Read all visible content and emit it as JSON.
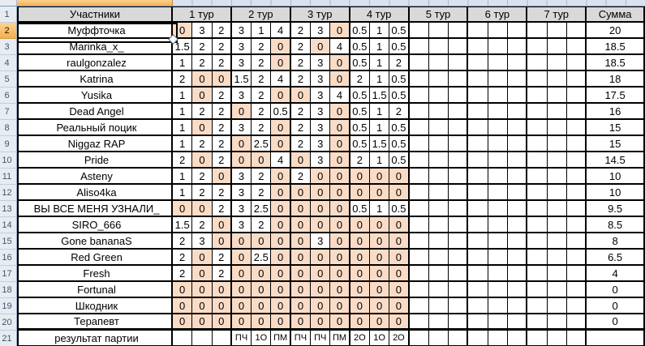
{
  "sheet": {
    "columns": {
      "header_row_number": "1",
      "participants_header": "Участники",
      "round_headers": [
        "1 тур",
        "2 тур",
        "3 тур",
        "4 тур",
        "5 тур",
        "6 тур",
        "7 тур"
      ],
      "sum_header": "Сумма"
    },
    "participants": [
      {
        "row": "2",
        "name": "Муффточка",
        "selected": true,
        "scores": [
          "0",
          "3",
          "2",
          "3",
          "1",
          "4",
          "2",
          "3",
          "0",
          "0.5",
          "1",
          "0.5",
          "",
          "",
          "",
          "",
          "",
          "",
          "",
          "",
          ""
        ],
        "sum": "20"
      },
      {
        "row": "3",
        "name": "Marinka_x_",
        "selected": false,
        "scores": [
          "1.5",
          "2",
          "2",
          "3",
          "2",
          "0",
          "2",
          "0",
          "4",
          "0.5",
          "1",
          "0.5",
          "",
          "",
          "",
          "",
          "",
          "",
          "",
          "",
          ""
        ],
        "sum": "18.5"
      },
      {
        "row": "4",
        "name": "raulgonzalez",
        "selected": false,
        "scores": [
          "1",
          "2",
          "2",
          "3",
          "2",
          "0",
          "2",
          "3",
          "0",
          "0.5",
          "1",
          "2",
          "",
          "",
          "",
          "",
          "",
          "",
          "",
          "",
          ""
        ],
        "sum": "18.5"
      },
      {
        "row": "5",
        "name": "Katrina",
        "selected": false,
        "scores": [
          "2",
          "0",
          "0",
          "1.5",
          "2",
          "4",
          "2",
          "3",
          "0",
          "2",
          "1",
          "0.5",
          "",
          "",
          "",
          "",
          "",
          "",
          "",
          "",
          ""
        ],
        "sum": "18"
      },
      {
        "row": "6",
        "name": "Yusika",
        "selected": false,
        "scores": [
          "1",
          "0",
          "2",
          "3",
          "2",
          "0",
          "0",
          "3",
          "4",
          "0.5",
          "1.5",
          "0.5",
          "",
          "",
          "",
          "",
          "",
          "",
          "",
          "",
          ""
        ],
        "sum": "17.5"
      },
      {
        "row": "7",
        "name": "Dead Angel",
        "selected": false,
        "scores": [
          "1",
          "2",
          "2",
          "0",
          "2",
          "0.5",
          "2",
          "3",
          "0",
          "0.5",
          "1",
          "2",
          "",
          "",
          "",
          "",
          "",
          "",
          "",
          "",
          ""
        ],
        "sum": "16"
      },
      {
        "row": "8",
        "name": "Реальный поцик",
        "selected": false,
        "scores": [
          "1",
          "0",
          "2",
          "3",
          "2",
          "0",
          "2",
          "3",
          "0",
          "0.5",
          "1",
          "0.5",
          "",
          "",
          "",
          "",
          "",
          "",
          "",
          "",
          ""
        ],
        "sum": "15"
      },
      {
        "row": "9",
        "name": "Niggaz RAP",
        "selected": false,
        "scores": [
          "1",
          "2",
          "2",
          "0",
          "2.5",
          "0",
          "2",
          "3",
          "0",
          "0.5",
          "1.5",
          "0.5",
          "",
          "",
          "",
          "",
          "",
          "",
          "",
          "",
          ""
        ],
        "sum": "15"
      },
      {
        "row": "10",
        "name": "Pride",
        "selected": false,
        "scores": [
          "2",
          "0",
          "2",
          "0",
          "0",
          "4",
          "0",
          "3",
          "0",
          "2",
          "1",
          "0.5",
          "",
          "",
          "",
          "",
          "",
          "",
          "",
          "",
          ""
        ],
        "sum": "14.5"
      },
      {
        "row": "11",
        "name": "Asteny",
        "selected": false,
        "scores": [
          "1",
          "2",
          "0",
          "3",
          "2",
          "0",
          "2",
          "0",
          "0",
          "0",
          "0",
          "0",
          "",
          "",
          "",
          "",
          "",
          "",
          "",
          "",
          ""
        ],
        "sum": "10"
      },
      {
        "row": "12",
        "name": "Aliso4ka",
        "selected": false,
        "scores": [
          "1",
          "2",
          "2",
          "3",
          "2",
          "0",
          "0",
          "0",
          "0",
          "0",
          "0",
          "0",
          "",
          "",
          "",
          "",
          "",
          "",
          "",
          "",
          ""
        ],
        "sum": "10"
      },
      {
        "row": "13",
        "name": "ВЫ ВСЕ МЕНЯ УЗНАЛИ_",
        "selected": false,
        "scores": [
          "0",
          "0",
          "2",
          "3",
          "2.5",
          "0",
          "0",
          "0",
          "0",
          "0.5",
          "1",
          "0.5",
          "",
          "",
          "",
          "",
          "",
          "",
          "",
          "",
          ""
        ],
        "sum": "9.5"
      },
      {
        "row": "14",
        "name": "SIRO_666",
        "selected": false,
        "scores": [
          "1.5",
          "2",
          "0",
          "3",
          "2",
          "0",
          "0",
          "0",
          "0",
          "0",
          "0",
          "0",
          "",
          "",
          "",
          "",
          "",
          "",
          "",
          "",
          ""
        ],
        "sum": "8.5"
      },
      {
        "row": "15",
        "name": "Gone bananaS",
        "selected": false,
        "scores": [
          "2",
          "3",
          "0",
          "0",
          "0",
          "0",
          "0",
          "3",
          "0",
          "0",
          "0",
          "0",
          "",
          "",
          "",
          "",
          "",
          "",
          "",
          "",
          ""
        ],
        "sum": "8"
      },
      {
        "row": "16",
        "name": "Red Green",
        "selected": false,
        "scores": [
          "2",
          "0",
          "2",
          "0",
          "2.5",
          "0",
          "0",
          "0",
          "0",
          "0",
          "0",
          "0",
          "",
          "",
          "",
          "",
          "",
          "",
          "",
          "",
          ""
        ],
        "sum": "6.5"
      },
      {
        "row": "17",
        "name": "Fresh",
        "selected": false,
        "scores": [
          "2",
          "0",
          "2",
          "0",
          "0",
          "0",
          "0",
          "0",
          "0",
          "0",
          "0",
          "0",
          "",
          "",
          "",
          "",
          "",
          "",
          "",
          "",
          ""
        ],
        "sum": "4"
      },
      {
        "row": "18",
        "name": "Fortunal",
        "selected": false,
        "scores": [
          "0",
          "0",
          "0",
          "0",
          "0",
          "0",
          "0",
          "0",
          "0",
          "0",
          "0",
          "0",
          "",
          "",
          "",
          "",
          "",
          "",
          "",
          "",
          ""
        ],
        "sum": "0"
      },
      {
        "row": "19",
        "name": "Шкодник",
        "selected": false,
        "scores": [
          "0",
          "0",
          "0",
          "0",
          "0",
          "0",
          "0",
          "0",
          "0",
          "0",
          "0",
          "0",
          "",
          "",
          "",
          "",
          "",
          "",
          "",
          "",
          ""
        ],
        "sum": "0"
      },
      {
        "row": "20",
        "name": "Терапевт",
        "selected": false,
        "scores": [
          "0",
          "0",
          "0",
          "0",
          "0",
          "0",
          "0",
          "0",
          "0",
          "0",
          "0",
          "0",
          "",
          "",
          "",
          "",
          "",
          "",
          "",
          "",
          ""
        ],
        "sum": "0"
      }
    ],
    "result_row": {
      "row": "21",
      "label": "результат партии",
      "cells": [
        "",
        "",
        "",
        "ПЧ",
        "1О",
        "ПМ",
        "ПЧ",
        "ПЧ",
        "ПМ",
        "2О",
        "1О",
        "2О",
        "",
        "",
        "",
        "",
        "",
        "",
        "",
        "",
        ""
      ],
      "sum": ""
    }
  },
  "colors": {
    "zero_highlight": "#FADCC6",
    "header_bg": "#D9D9D9",
    "selected_header_bg": "#F6AE4C",
    "selected_header_bg_light": "#FCD294",
    "row_header_bg": "#E7ECF3",
    "strip_bg": "#D9E2EE"
  }
}
